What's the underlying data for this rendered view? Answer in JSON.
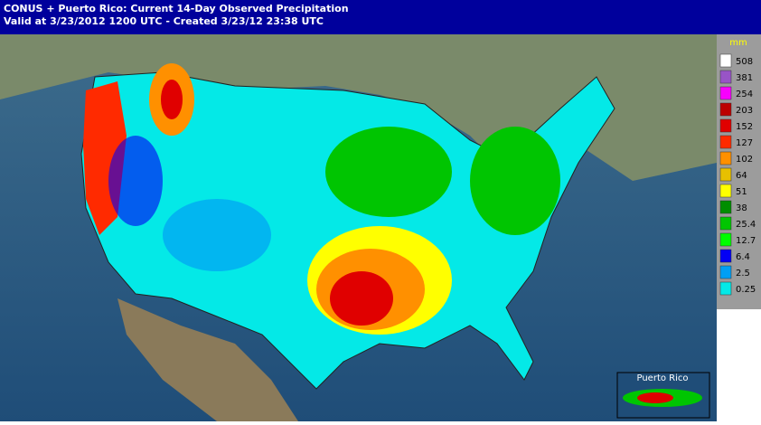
{
  "header": {
    "line1": "CONUS + Puerto Rico: Current 14-Day Observed Precipitation",
    "line2": "Valid at 3/23/2012 1200 UTC - Created 3/23/12 23:38 UTC"
  },
  "legend": {
    "unit": "mm",
    "items": [
      {
        "label": "508",
        "color": "#ffffff"
      },
      {
        "label": "381",
        "color": "#9854c6"
      },
      {
        "label": "254",
        "color": "#f800fd"
      },
      {
        "label": "203",
        "color": "#bc0000"
      },
      {
        "label": "152",
        "color": "#e00000"
      },
      {
        "label": "127",
        "color": "#ff2a00"
      },
      {
        "label": "102",
        "color": "#ff9000"
      },
      {
        "label": "64",
        "color": "#e7c000"
      },
      {
        "label": "51",
        "color": "#ffff00"
      },
      {
        "label": "38",
        "color": "#008e00"
      },
      {
        "label": "25.4",
        "color": "#01c501"
      },
      {
        "label": "12.7",
        "color": "#00ff00"
      },
      {
        "label": "6.4",
        "color": "#0300f4"
      },
      {
        "label": "2.5",
        "color": "#019ff4"
      },
      {
        "label": "0.25",
        "color": "#04e9e7"
      }
    ]
  },
  "inset": {
    "label": "Puerto Rico"
  }
}
